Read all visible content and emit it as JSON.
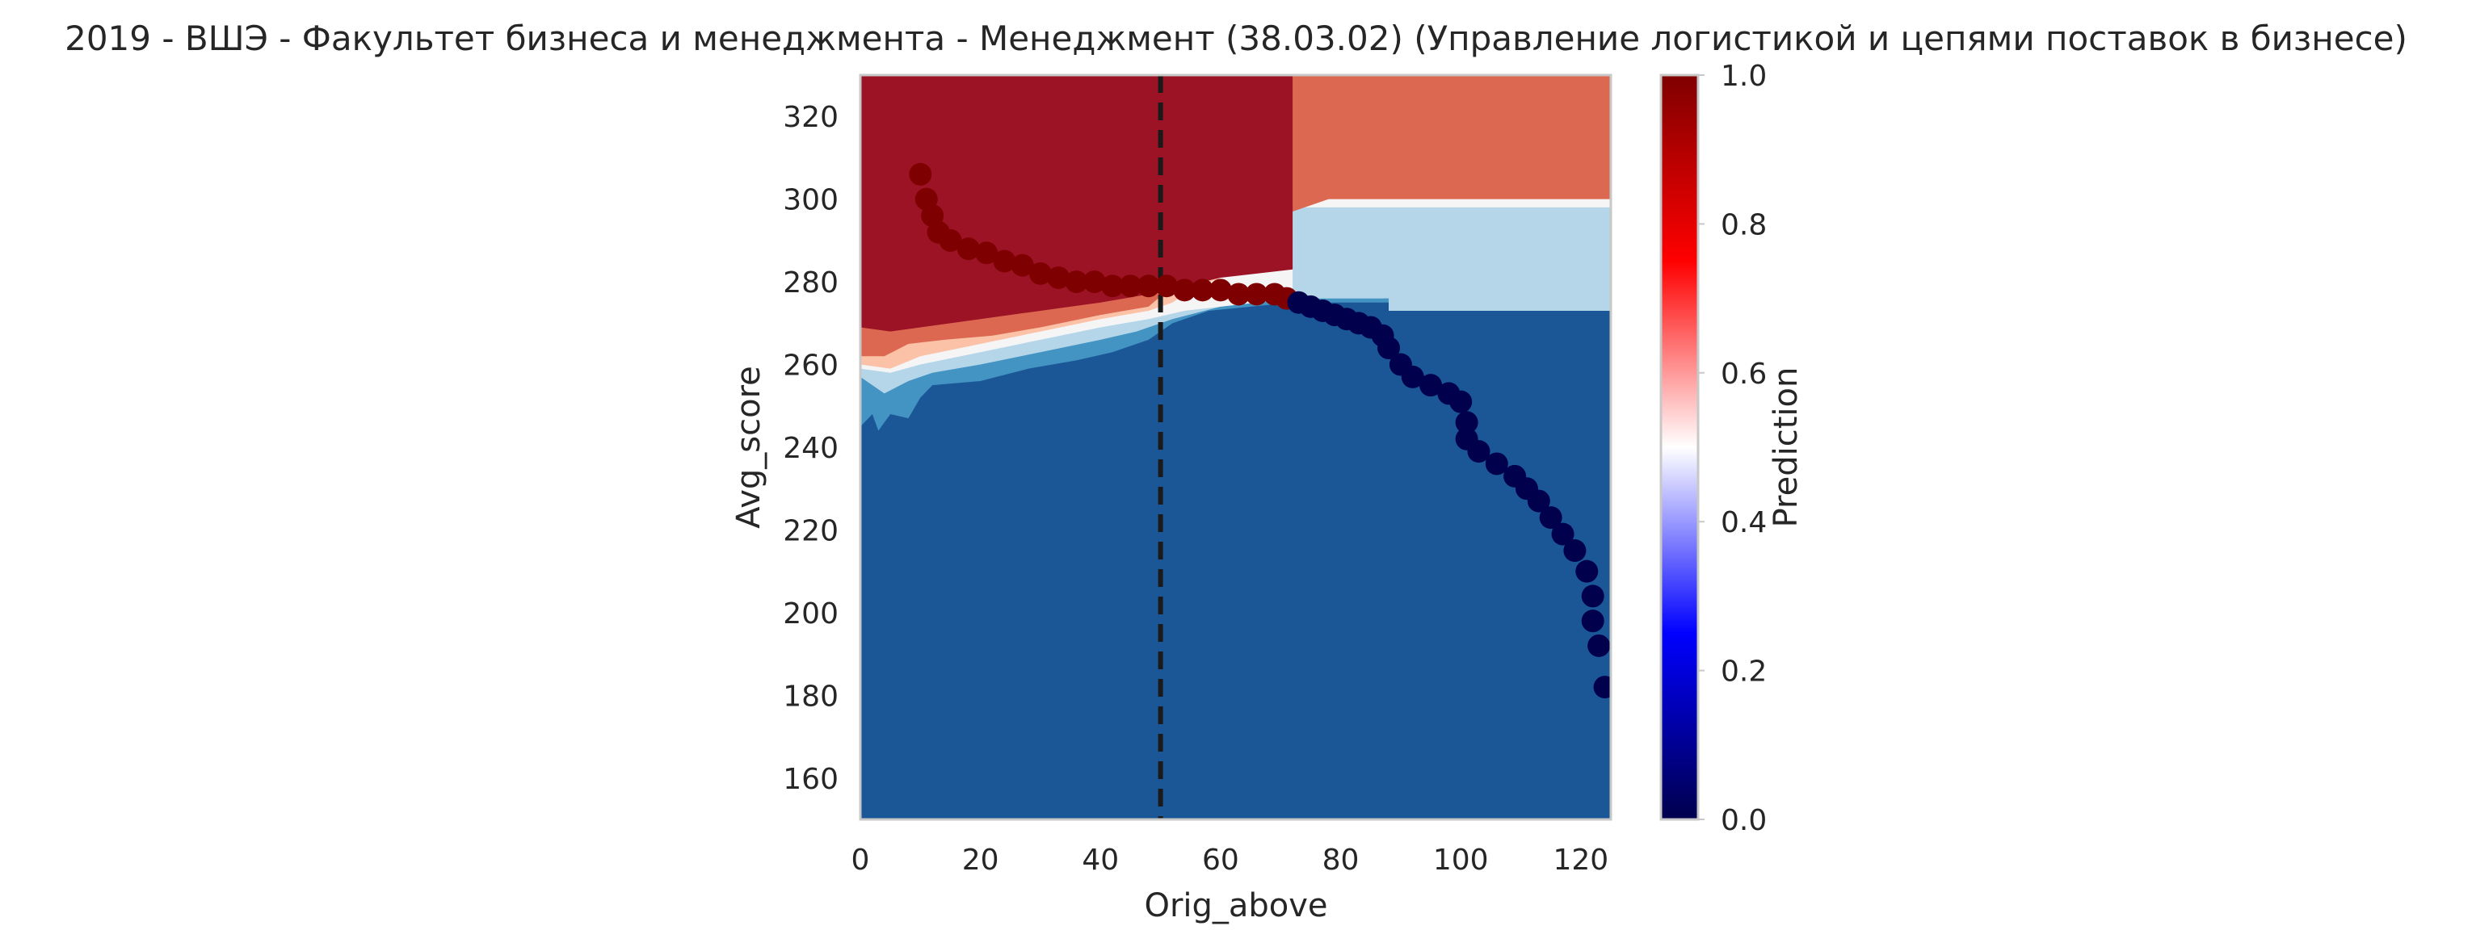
{
  "chart_data": {
    "type": "heatmap",
    "title": "2019 - ВШЭ - Факультет бизнеса и менеджмента - Менеджмент (38.03.02) (Управление логистикой и цепями поставок в бизнесе)",
    "xlabel": "Orig_above",
    "ylabel": "Avg_score",
    "xlim": [
      0,
      125
    ],
    "ylim": [
      150,
      330
    ],
    "xticks": [
      "0",
      "20",
      "40",
      "60",
      "80",
      "100",
      "120"
    ],
    "yticks": [
      "160",
      "180",
      "200",
      "220",
      "240",
      "260",
      "280",
      "300",
      "320"
    ],
    "colorbar_label": "Prediction",
    "colorbar_ticks": [
      "0.0",
      "0.2",
      "0.4",
      "0.6",
      "0.8",
      "1.0"
    ],
    "colormap_stops": [
      "#00004c",
      "#0000ff",
      "#ffffff",
      "#ff0000",
      "#7f0000"
    ],
    "contour_colors": {
      "p0_0": "#1b5797",
      "p0_2": "#4393c3",
      "p0_4": "#b5d6e9",
      "p0_5": "#f5f5f5",
      "p0_6": "#fbc2a7",
      "p0_8": "#dd6852",
      "p1_0": "#9d1326"
    },
    "threshold_line": {
      "x": 50,
      "style": "dashed"
    },
    "grid": false,
    "points": [
      {
        "x": 10,
        "y": 306,
        "p": 1
      },
      {
        "x": 11,
        "y": 300,
        "p": 1
      },
      {
        "x": 12,
        "y": 296,
        "p": 1
      },
      {
        "x": 13,
        "y": 292,
        "p": 1
      },
      {
        "x": 15,
        "y": 290,
        "p": 1
      },
      {
        "x": 18,
        "y": 288,
        "p": 1
      },
      {
        "x": 21,
        "y": 287,
        "p": 1
      },
      {
        "x": 24,
        "y": 285,
        "p": 1
      },
      {
        "x": 27,
        "y": 284,
        "p": 1
      },
      {
        "x": 30,
        "y": 282,
        "p": 1
      },
      {
        "x": 33,
        "y": 281,
        "p": 1
      },
      {
        "x": 36,
        "y": 280,
        "p": 1
      },
      {
        "x": 39,
        "y": 280,
        "p": 1
      },
      {
        "x": 42,
        "y": 279,
        "p": 1
      },
      {
        "x": 45,
        "y": 279,
        "p": 1
      },
      {
        "x": 48,
        "y": 279,
        "p": 1
      },
      {
        "x": 51,
        "y": 279,
        "p": 1
      },
      {
        "x": 54,
        "y": 278,
        "p": 1
      },
      {
        "x": 57,
        "y": 278,
        "p": 1
      },
      {
        "x": 60,
        "y": 278,
        "p": 1
      },
      {
        "x": 63,
        "y": 277,
        "p": 1
      },
      {
        "x": 66,
        "y": 277,
        "p": 1
      },
      {
        "x": 69,
        "y": 277,
        "p": 1
      },
      {
        "x": 71,
        "y": 276,
        "p": 1
      },
      {
        "x": 73,
        "y": 275,
        "p": 0
      },
      {
        "x": 75,
        "y": 274,
        "p": 0
      },
      {
        "x": 77,
        "y": 273,
        "p": 0
      },
      {
        "x": 79,
        "y": 272,
        "p": 0
      },
      {
        "x": 81,
        "y": 271,
        "p": 0
      },
      {
        "x": 83,
        "y": 270,
        "p": 0
      },
      {
        "x": 85,
        "y": 269,
        "p": 0
      },
      {
        "x": 87,
        "y": 267,
        "p": 0
      },
      {
        "x": 88,
        "y": 264,
        "p": 0
      },
      {
        "x": 90,
        "y": 260,
        "p": 0
      },
      {
        "x": 92,
        "y": 257,
        "p": 0
      },
      {
        "x": 95,
        "y": 255,
        "p": 0
      },
      {
        "x": 98,
        "y": 253,
        "p": 0
      },
      {
        "x": 100,
        "y": 251,
        "p": 0
      },
      {
        "x": 101,
        "y": 246,
        "p": 0
      },
      {
        "x": 101,
        "y": 242,
        "p": 0
      },
      {
        "x": 103,
        "y": 239,
        "p": 0
      },
      {
        "x": 106,
        "y": 236,
        "p": 0
      },
      {
        "x": 109,
        "y": 233,
        "p": 0
      },
      {
        "x": 111,
        "y": 230,
        "p": 0
      },
      {
        "x": 113,
        "y": 227,
        "p": 0
      },
      {
        "x": 115,
        "y": 223,
        "p": 0
      },
      {
        "x": 117,
        "y": 219,
        "p": 0
      },
      {
        "x": 119,
        "y": 215,
        "p": 0
      },
      {
        "x": 121,
        "y": 210,
        "p": 0
      },
      {
        "x": 122,
        "y": 204,
        "p": 0
      },
      {
        "x": 122,
        "y": 198,
        "p": 0
      },
      {
        "x": 123,
        "y": 192,
        "p": 0
      },
      {
        "x": 124,
        "y": 182,
        "p": 0
      }
    ]
  }
}
